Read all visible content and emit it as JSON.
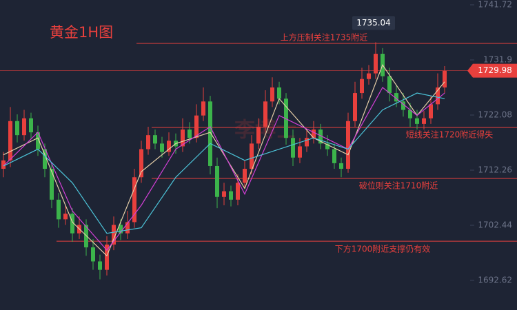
{
  "chart_data": {
    "type": "candlestick",
    "title": "黄金1H图",
    "watermark": "李博士",
    "up_color": "#e8403d",
    "down_color": "#3cb44b",
    "ylim": [
      1687.34,
      1742.58
    ],
    "yticks": [
      1692.62,
      1702.44,
      1712.26,
      1722.08,
      1731.9,
      1741.72
    ],
    "open": [
      1712.5,
      1714.0,
      1721.0,
      1718.5,
      1721.5,
      1719.0,
      1716.0,
      1712.5,
      1707.0,
      1703.5,
      1704.5,
      1701.0,
      1702.5,
      1698.5,
      1696.0,
      1694.5,
      1699.0,
      1702.5,
      1701.0,
      1703.0,
      1711.0,
      1716.0,
      1718.5,
      1717.0,
      1715.5,
      1717.5,
      1716.5,
      1719.5,
      1718.0,
      1722.0,
      1724.5,
      1713.0,
      1707.5,
      1708.5,
      1707.0,
      1710.0,
      1712.5,
      1717.0,
      1720.0,
      1724.5,
      1727.0,
      1725.0,
      1718.0,
      1714.5,
      1716.5,
      1718.0,
      1719.5,
      1717.0,
      1716.0,
      1713.5,
      1712.5,
      1721.0,
      1726.0,
      1728.5,
      1729.5,
      1733.0,
      1729.0,
      1726.0,
      1724.5,
      1723.0,
      1721.5,
      1720.5,
      1721.5,
      1724.0,
      1727.0
    ],
    "high": [
      1715.5,
      1723.5,
      1722.2,
      1723.0,
      1722.5,
      1720.2,
      1717.0,
      1713.5,
      1708.2,
      1706.0,
      1705.5,
      1704.0,
      1703.5,
      1700.0,
      1697.2,
      1700.5,
      1704.0,
      1703.5,
      1705.0,
      1712.5,
      1717.5,
      1720.0,
      1719.5,
      1718.2,
      1719.0,
      1718.8,
      1721.5,
      1720.8,
      1724.0,
      1727.0,
      1725.5,
      1714.5,
      1710.0,
      1709.5,
      1711.5,
      1714.0,
      1718.5,
      1721.5,
      1726.5,
      1728.8,
      1728.0,
      1726.0,
      1719.5,
      1718.0,
      1719.5,
      1721.0,
      1720.5,
      1718.5,
      1717.0,
      1714.5,
      1722.5,
      1728.0,
      1730.5,
      1731.0,
      1735.04,
      1734.0,
      1730.5,
      1727.5,
      1726.0,
      1724.2,
      1723.0,
      1722.8,
      1725.5,
      1729.5,
      1730.8
    ],
    "low": [
      1711.0,
      1712.8,
      1717.2,
      1717.5,
      1717.8,
      1714.8,
      1711.0,
      1705.5,
      1702.0,
      1702.5,
      1699.5,
      1700.0,
      1697.0,
      1694.5,
      1692.8,
      1693.5,
      1698.0,
      1699.8,
      1700.0,
      1702.0,
      1710.0,
      1715.0,
      1716.0,
      1714.5,
      1714.8,
      1715.2,
      1715.5,
      1717.0,
      1717.2,
      1721.0,
      1711.5,
      1705.5,
      1706.0,
      1705.8,
      1706.0,
      1709.0,
      1711.5,
      1716.0,
      1719.0,
      1723.5,
      1724.0,
      1716.8,
      1713.0,
      1713.5,
      1715.5,
      1717.0,
      1716.0,
      1714.8,
      1712.5,
      1711.0,
      1711.8,
      1720.0,
      1725.0,
      1727.5,
      1728.5,
      1728.0,
      1724.5,
      1723.5,
      1721.8,
      1720.0,
      1719.5,
      1719.5,
      1720.5,
      1723.0,
      1726.0
    ],
    "close": [
      1714.0,
      1721.0,
      1718.5,
      1721.5,
      1719.0,
      1716.0,
      1712.5,
      1707.0,
      1703.5,
      1704.5,
      1701.0,
      1702.5,
      1698.5,
      1696.0,
      1694.5,
      1699.0,
      1702.5,
      1701.0,
      1703.0,
      1711.0,
      1716.0,
      1718.5,
      1717.0,
      1715.5,
      1717.5,
      1716.5,
      1719.5,
      1718.0,
      1722.0,
      1724.5,
      1713.0,
      1707.5,
      1708.5,
      1707.0,
      1710.0,
      1712.5,
      1717.0,
      1720.0,
      1724.5,
      1727.0,
      1725.0,
      1718.0,
      1714.5,
      1716.5,
      1718.0,
      1719.5,
      1717.0,
      1716.0,
      1713.5,
      1712.5,
      1721.0,
      1726.0,
      1728.5,
      1729.5,
      1733.0,
      1729.0,
      1726.0,
      1724.5,
      1723.0,
      1721.5,
      1720.5,
      1721.5,
      1724.0,
      1727.0,
      1729.98
    ],
    "moving_averages": [
      {
        "color": "#e6cfa8",
        "x": [
          0,
          5,
          10,
          15,
          20,
          25,
          30,
          35,
          40,
          45,
          50,
          55,
          60,
          64
        ],
        "values": [
          1715,
          1718,
          1703,
          1697,
          1712,
          1717,
          1719,
          1709,
          1725,
          1718,
          1715,
          1731,
          1722,
          1728
        ]
      },
      {
        "color": "#d23fd6",
        "x": [
          0,
          5,
          10,
          15,
          20,
          25,
          30,
          35,
          40,
          45,
          50,
          55,
          60,
          64
        ],
        "values": [
          1713,
          1719,
          1705,
          1698,
          1706,
          1716,
          1720,
          1708,
          1722,
          1719,
          1716,
          1727,
          1722,
          1726
        ]
      },
      {
        "color": "#4cc3d8",
        "x": [
          0,
          5,
          10,
          15,
          20,
          25,
          30,
          35,
          40,
          45,
          50,
          55,
          60,
          64
        ],
        "values": [
          1713,
          1716,
          1710,
          1701,
          1702,
          1711,
          1717,
          1714,
          1716,
          1718,
          1716,
          1723,
          1726,
          1725
        ]
      }
    ],
    "levels": [
      {
        "value": 1734.85,
        "label": "上方压制关注1735附近"
      },
      {
        "value": 1719.87,
        "label": "短线关注1720附近得失"
      },
      {
        "value": 1710.78,
        "label": "破位则关注1710附近"
      },
      {
        "value": 1699.6,
        "label": "下方1700附近支撑仍有效"
      }
    ],
    "high_marker": {
      "value": 1735.04,
      "index": 54
    },
    "last_price": 1729.98
  }
}
